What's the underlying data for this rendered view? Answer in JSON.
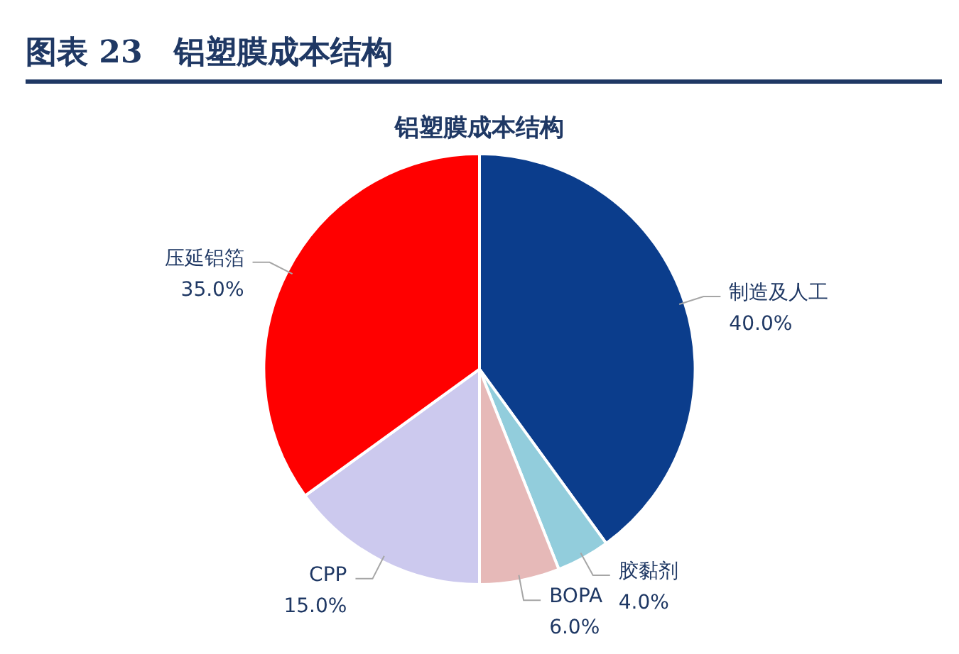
{
  "chart_data": {
    "type": "pie",
    "title": "图表 23　铝塑膜成本结构",
    "subtitle": "铝塑膜成本结构",
    "categories": [
      "制造及人工",
      "胶黏剂",
      "BOPA",
      "CPP",
      "压延铝箔"
    ],
    "values": [
      40,
      4,
      6,
      15,
      35
    ],
    "colors": [
      "#0b3d8c",
      "#92cddc",
      "#e6b9b8",
      "#ccc9ee",
      "#ff0000"
    ],
    "value_labels": [
      "40.0%",
      "4.0%",
      "6.0%",
      "15.0%",
      "35.0%"
    ],
    "legend": false
  }
}
